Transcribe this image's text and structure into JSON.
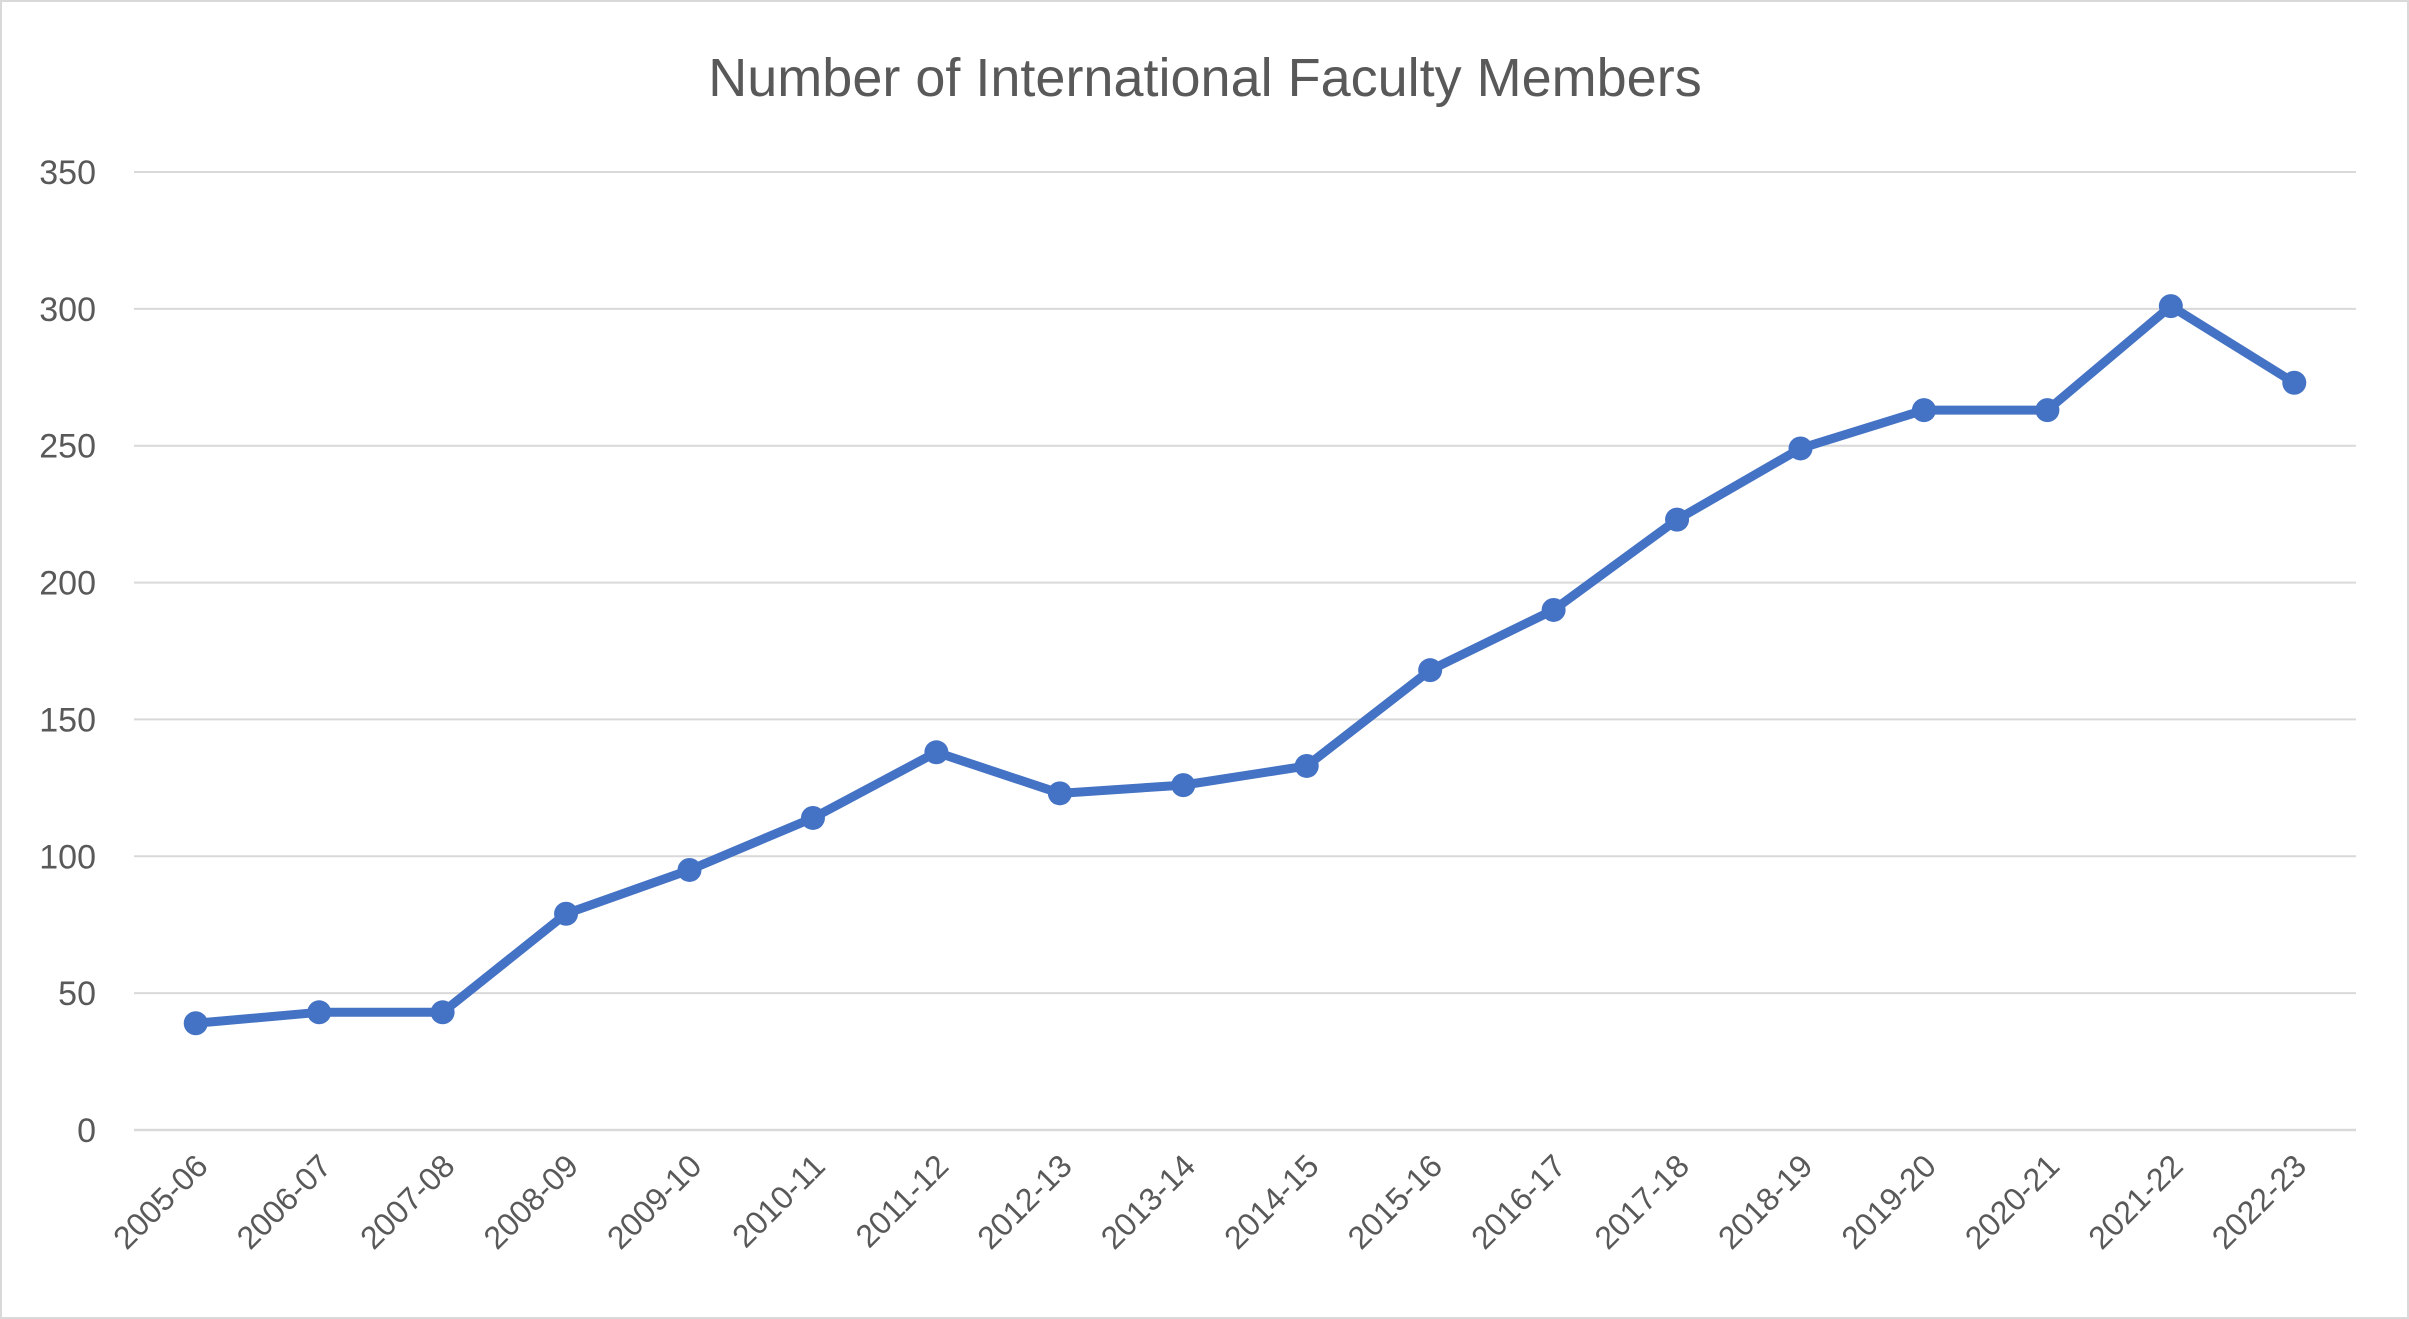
{
  "chart_data": {
    "type": "line",
    "title": "Number of International Faculty Members",
    "xlabel": "",
    "ylabel": "",
    "ylim": [
      0,
      350
    ],
    "yticks": [
      "0",
      "50",
      "100",
      "150",
      "200",
      "250",
      "300",
      "350"
    ],
    "grid": true,
    "legend": "none",
    "categories": [
      "2005-06",
      "2006-07",
      "2007-08",
      "2008-09",
      "2009-10",
      "2010-11",
      "2011-12",
      "2012-13",
      "2013-14",
      "2014-15",
      "2015-16",
      "2016-17",
      "2017-18",
      "2018-19",
      "2019-20",
      "2020-21",
      "2021-22",
      "2022-23"
    ],
    "series": [
      {
        "values": [
          39,
          43,
          43,
          79,
          95,
          114,
          138,
          123,
          126,
          133,
          168,
          190,
          223,
          249,
          263,
          263,
          301,
          273
        ],
        "color": "#4472c4"
      }
    ]
  }
}
